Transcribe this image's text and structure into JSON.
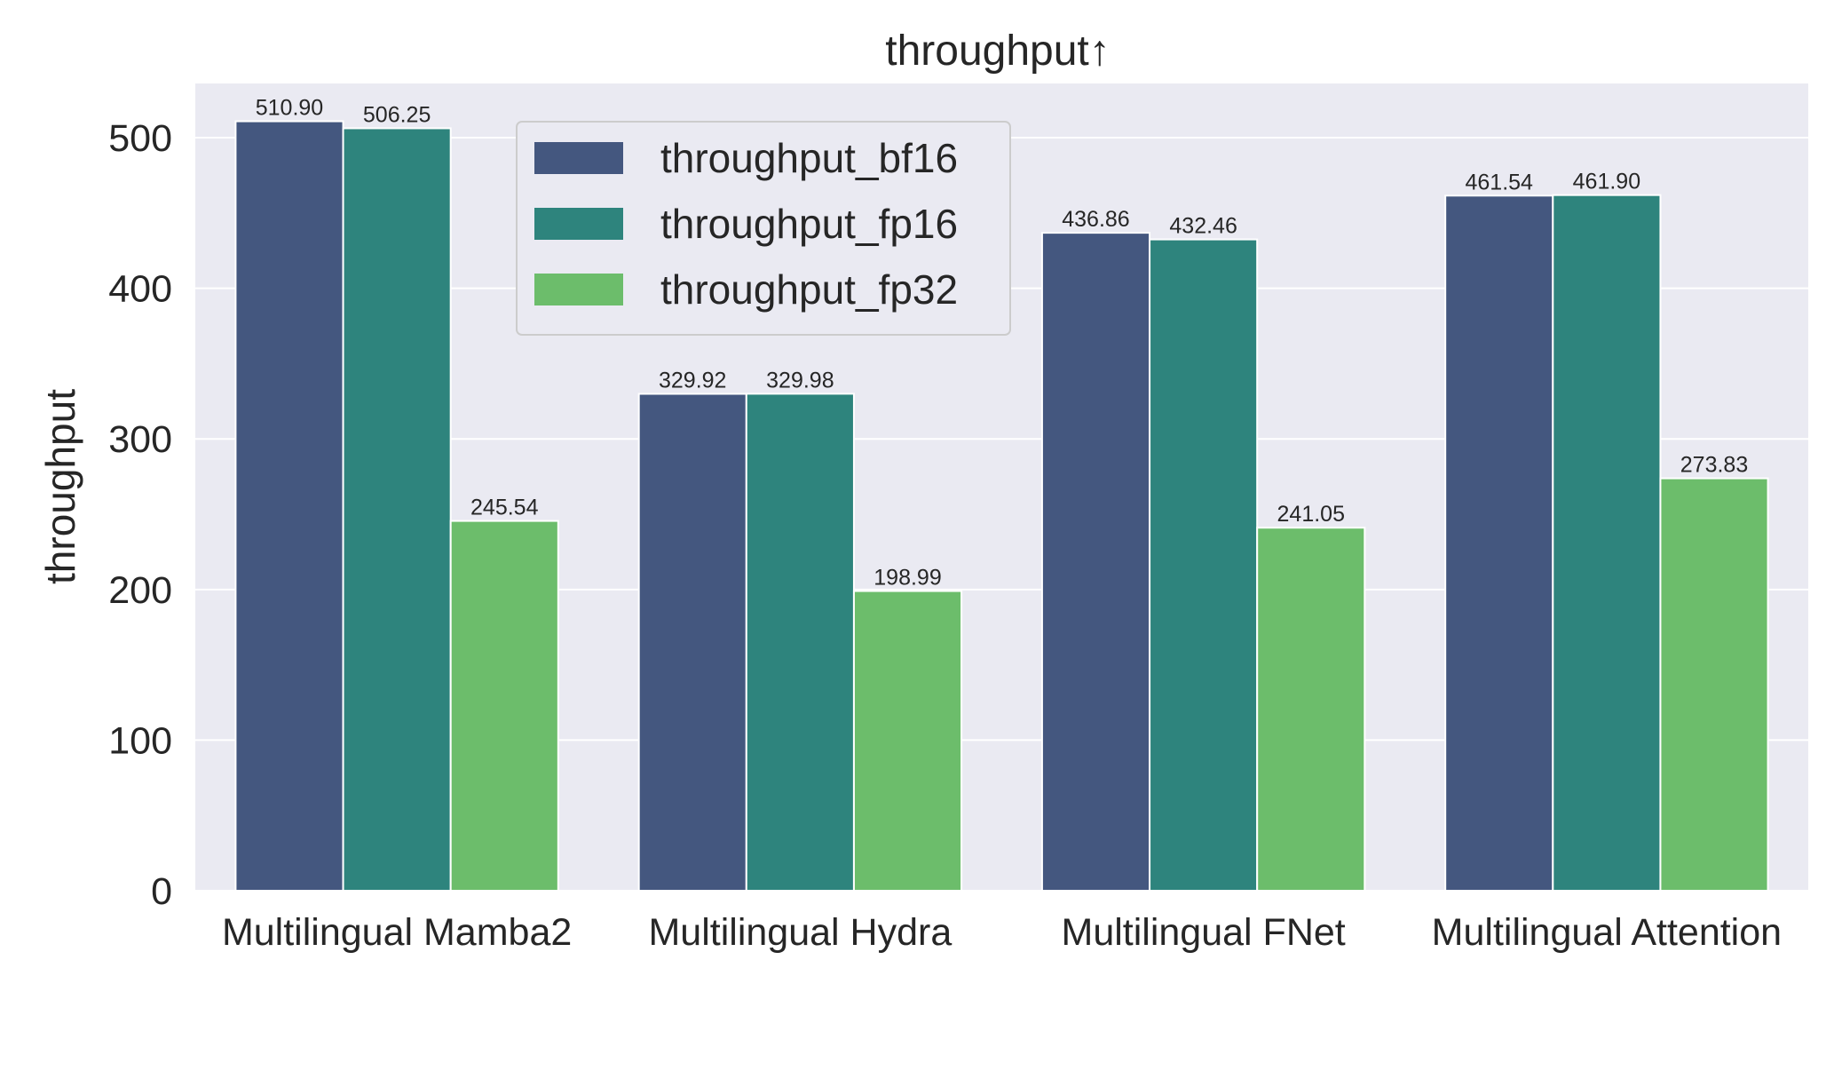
{
  "chart_data": {
    "type": "bar",
    "title": "throughput↑",
    "xlabel": "",
    "ylabel": "throughput",
    "categories": [
      "Multilingual Mamba2",
      "Multilingual Hydra",
      "Multilingual FNet",
      "Multilingual Attention"
    ],
    "series": [
      {
        "name": "throughput_bf16",
        "color": "#44577f",
        "values": [
          510.9,
          329.92,
          436.86,
          461.54
        ],
        "labels": [
          "510.90",
          "329.92",
          "436.86",
          "461.54"
        ]
      },
      {
        "name": "throughput_fp16",
        "color": "#2e847d",
        "values": [
          506.25,
          329.98,
          432.46,
          461.9
        ],
        "labels": [
          "506.25",
          "329.98",
          "432.46",
          "461.90"
        ]
      },
      {
        "name": "throughput_fp32",
        "color": "#6cbd6b",
        "values": [
          245.54,
          198.99,
          241.05,
          273.83
        ],
        "labels": [
          "245.54",
          "198.99",
          "241.05",
          "273.83"
        ]
      }
    ],
    "ylim": [
      0,
      536
    ],
    "yticks": [
      "0",
      "100",
      "200",
      "300",
      "400",
      "500"
    ],
    "grid": true,
    "legend_position": "top-center",
    "background_color": "#eaeaf2"
  }
}
